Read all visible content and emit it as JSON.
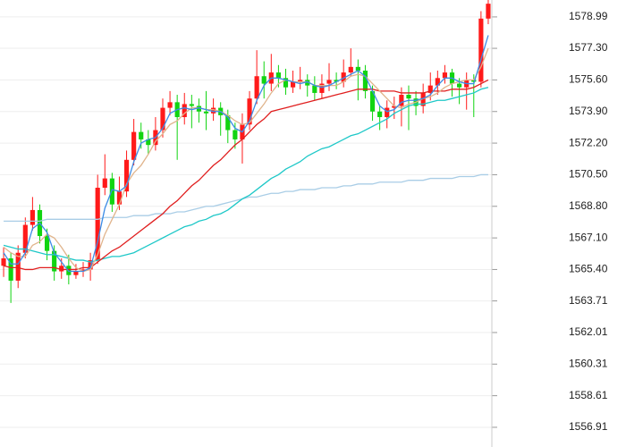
{
  "chart_data": {
    "type": "candlestick",
    "ylim": [
      1555.85,
      1579.9
    ],
    "yticks": [
      {
        "value": 1578.99,
        "label": "1578.99"
      },
      {
        "value": 1577.3,
        "label": "1577.30"
      },
      {
        "value": 1575.6,
        "label": "1575.60"
      },
      {
        "value": 1573.9,
        "label": "1573.90"
      },
      {
        "value": 1572.2,
        "label": "1572.20"
      },
      {
        "value": 1570.5,
        "label": "1570.50"
      },
      {
        "value": 1568.8,
        "label": "1568.80"
      },
      {
        "value": 1567.1,
        "label": "1567.10"
      },
      {
        "value": 1565.4,
        "label": "1565.40"
      },
      1563.71,
      1562.01,
      1560.31,
      1558.61,
      1556.91
    ],
    "grid": true,
    "up_color": "#ff1a1a",
    "down_color": "#11d411",
    "open": [
      1565.6,
      1566.0,
      1564.8,
      1566.3,
      1567.8,
      1568.6,
      1567.2,
      1566.4,
      1565.3,
      1565.6,
      1565.1,
      1565.3,
      1565.4,
      1565.9,
      1569.8,
      1570.3,
      1568.9,
      1569.6,
      1571.3,
      1572.8,
      1572.4,
      1572.1,
      1572.9,
      1574.1,
      1574.4,
      1573.6,
      1574.3,
      1574.2,
      1573.9,
      1573.8,
      1574.1,
      1573.7,
      1572.9,
      1572.4,
      1573.2,
      1574.6,
      1575.8,
      1575.4,
      1576.0,
      1575.7,
      1575.2,
      1575.5,
      1575.6,
      1575.3,
      1574.9,
      1575.4,
      1575.6,
      1575.5,
      1576.0,
      1576.3,
      1576.1,
      1575.0,
      1573.9,
      1573.6,
      1574.1,
      1574.2,
      1574.8,
      1574.6,
      1574.2,
      1574.9,
      1575.3,
      1575.7,
      1576.0,
      1575.4,
      1575.2,
      1575.6,
      1575.5,
      1578.9
    ],
    "high": [
      1566.6,
      1566.3,
      1566.7,
      1568.2,
      1569.3,
      1568.9,
      1567.6,
      1566.7,
      1566.0,
      1566.2,
      1565.7,
      1565.8,
      1566.3,
      1570.5,
      1571.6,
      1570.6,
      1570.4,
      1571.8,
      1573.5,
      1573.3,
      1572.9,
      1573.6,
      1574.6,
      1575.0,
      1574.8,
      1574.9,
      1574.8,
      1574.6,
      1575.0,
      1574.6,
      1574.4,
      1574.0,
      1573.3,
      1573.8,
      1575.0,
      1577.2,
      1576.6,
      1577.0,
      1576.4,
      1576.2,
      1576.1,
      1576.3,
      1575.9,
      1575.8,
      1575.9,
      1576.5,
      1576.0,
      1576.7,
      1577.3,
      1576.7,
      1576.4,
      1575.3,
      1574.2,
      1574.5,
      1574.7,
      1575.2,
      1575.3,
      1575.0,
      1575.4,
      1576.0,
      1576.1,
      1576.4,
      1576.2,
      1575.7,
      1576.0,
      1575.9,
      1579.3,
      1579.9
    ],
    "low": [
      1565.0,
      1563.6,
      1564.4,
      1566.0,
      1567.5,
      1566.8,
      1565.9,
      1564.8,
      1564.9,
      1564.6,
      1564.9,
      1565.0,
      1564.8,
      1565.7,
      1569.4,
      1568.5,
      1568.6,
      1569.3,
      1571.0,
      1571.9,
      1571.6,
      1571.8,
      1572.5,
      1573.7,
      1571.3,
      1573.2,
      1573.0,
      1573.3,
      1572.9,
      1573.4,
      1572.6,
      1572.2,
      1571.9,
      1571.1,
      1572.9,
      1574.3,
      1574.6,
      1575.0,
      1575.2,
      1574.8,
      1574.9,
      1575.1,
      1574.7,
      1574.5,
      1574.6,
      1575.0,
      1575.1,
      1575.2,
      1575.8,
      1574.5,
      1574.6,
      1573.4,
      1572.9,
      1573.0,
      1573.5,
      1573.1,
      1572.9,
      1573.7,
      1573.8,
      1574.5,
      1574.8,
      1575.4,
      1574.7,
      1574.3,
      1574.0,
      1573.6,
      1575.2,
      1578.6
    ],
    "close": [
      1566.0,
      1564.8,
      1566.3,
      1567.8,
      1568.6,
      1567.2,
      1566.4,
      1565.3,
      1565.6,
      1565.1,
      1565.3,
      1565.4,
      1565.9,
      1569.8,
      1570.3,
      1568.9,
      1569.6,
      1571.3,
      1572.8,
      1572.4,
      1572.1,
      1572.9,
      1574.1,
      1574.4,
      1573.6,
      1574.3,
      1574.2,
      1573.9,
      1573.8,
      1574.1,
      1573.7,
      1572.9,
      1572.4,
      1573.2,
      1574.6,
      1575.8,
      1575.4,
      1576.0,
      1575.7,
      1575.2,
      1575.5,
      1575.6,
      1575.3,
      1574.9,
      1575.4,
      1575.6,
      1575.5,
      1576.0,
      1576.3,
      1576.1,
      1575.0,
      1573.9,
      1573.6,
      1574.1,
      1574.2,
      1574.8,
      1574.6,
      1574.2,
      1574.9,
      1575.3,
      1575.7,
      1576.0,
      1575.4,
      1575.2,
      1575.6,
      1575.5,
      1578.9,
      1579.7
    ],
    "lines": [
      {
        "color": "#a9cde6",
        "values": [
          1568.0,
          1568.0,
          1568.0,
          1568.0,
          1568.0,
          1568.0,
          1568.1,
          1568.1,
          1568.1,
          1568.1,
          1568.1,
          1568.1,
          1568.1,
          1568.1,
          1568.2,
          1568.2,
          1568.2,
          1568.2,
          1568.3,
          1568.3,
          1568.3,
          1568.4,
          1568.4,
          1568.4,
          1568.5,
          1568.5,
          1568.6,
          1568.7,
          1568.8,
          1568.8,
          1568.9,
          1569.0,
          1569.1,
          1569.2,
          1569.3,
          1569.3,
          1569.4,
          1569.5,
          1569.5,
          1569.6,
          1569.6,
          1569.7,
          1569.7,
          1569.7,
          1569.8,
          1569.8,
          1569.8,
          1569.9,
          1569.9,
          1570.0,
          1570.0,
          1570.0,
          1570.1,
          1570.1,
          1570.1,
          1570.1,
          1570.2,
          1570.2,
          1570.2,
          1570.3,
          1570.3,
          1570.3,
          1570.3,
          1570.4,
          1570.4,
          1570.4,
          1570.5,
          1570.5
        ]
      },
      {
        "color": "#1ec8c8",
        "values": [
          1566.7,
          1566.6,
          1566.5,
          1566.5,
          1566.4,
          1566.3,
          1566.2,
          1566.2,
          1566.1,
          1566.0,
          1565.9,
          1565.9,
          1565.8,
          1565.9,
          1566.0,
          1566.1,
          1566.1,
          1566.2,
          1566.3,
          1566.5,
          1566.7,
          1566.9,
          1567.1,
          1567.3,
          1567.5,
          1567.7,
          1567.8,
          1568.0,
          1568.1,
          1568.3,
          1568.4,
          1568.6,
          1568.9,
          1569.2,
          1569.4,
          1569.7,
          1570.0,
          1570.3,
          1570.5,
          1570.8,
          1571.0,
          1571.2,
          1571.5,
          1571.7,
          1571.9,
          1572.0,
          1572.2,
          1572.4,
          1572.6,
          1572.7,
          1572.9,
          1573.1,
          1573.3,
          1573.5,
          1573.8,
          1574.0,
          1574.2,
          1574.3,
          1574.3,
          1574.4,
          1574.5,
          1574.5,
          1574.6,
          1574.7,
          1574.8,
          1574.9,
          1575.1,
          1575.2
        ]
      },
      {
        "color": "#e01e1e",
        "values": [
          1565.6,
          1565.5,
          1565.5,
          1565.4,
          1565.4,
          1565.5,
          1565.5,
          1565.5,
          1565.4,
          1565.4,
          1565.4,
          1565.5,
          1565.5,
          1565.8,
          1566.1,
          1566.4,
          1566.6,
          1566.9,
          1567.2,
          1567.5,
          1567.8,
          1568.1,
          1568.4,
          1568.8,
          1569.1,
          1569.5,
          1569.9,
          1570.2,
          1570.6,
          1571.0,
          1571.3,
          1571.7,
          1572.1,
          1572.4,
          1572.8,
          1573.2,
          1573.5,
          1573.9,
          1574.0,
          1574.1,
          1574.2,
          1574.3,
          1574.4,
          1574.5,
          1574.6,
          1574.7,
          1574.8,
          1574.9,
          1575.0,
          1575.1,
          1575.1,
          1575.1,
          1575.0,
          1575.0,
          1575.0,
          1574.9,
          1574.9,
          1574.9,
          1574.9,
          1575.0,
          1575.0,
          1575.0,
          1575.1,
          1575.1,
          1575.1,
          1575.2,
          1575.4,
          1575.6
        ]
      },
      {
        "color": "#e0b48c",
        "values": [
          1566.6,
          1566.3,
          1566.1,
          1566.1,
          1566.7,
          1566.9,
          1567.3,
          1567.1,
          1566.6,
          1566.0,
          1565.5,
          1565.3,
          1565.4,
          1566.2,
          1567.3,
          1568.1,
          1568.9,
          1570.0,
          1570.6,
          1571.0,
          1571.6,
          1572.3,
          1572.7,
          1573.2,
          1573.4,
          1573.8,
          1574.1,
          1574.1,
          1574.0,
          1574.0,
          1573.9,
          1573.7,
          1573.4,
          1573.2,
          1573.3,
          1573.8,
          1574.3,
          1574.9,
          1575.4,
          1575.6,
          1575.5,
          1575.5,
          1575.5,
          1575.3,
          1575.3,
          1575.3,
          1575.3,
          1575.5,
          1575.8,
          1575.9,
          1575.8,
          1575.4,
          1575.0,
          1574.6,
          1574.2,
          1574.1,
          1574.3,
          1574.4,
          1574.6,
          1574.7,
          1574.9,
          1575.2,
          1575.4,
          1575.5,
          1575.6,
          1575.6,
          1576.3,
          1577.3
        ]
      },
      {
        "color": "#3c8ce6",
        "values": [
          1566.3,
          1565.7,
          1565.7,
          1566.3,
          1567.6,
          1567.9,
          1567.4,
          1566.3,
          1565.8,
          1565.3,
          1565.3,
          1565.3,
          1565.5,
          1566.9,
          1568.7,
          1569.7,
          1569.6,
          1569.9,
          1571.2,
          1572.2,
          1572.4,
          1572.5,
          1573.0,
          1573.8,
          1574.0,
          1574.1,
          1574.0,
          1574.1,
          1574.0,
          1573.9,
          1573.9,
          1573.6,
          1573.0,
          1572.8,
          1573.4,
          1574.5,
          1575.3,
          1575.7,
          1575.7,
          1575.6,
          1575.5,
          1575.4,
          1575.5,
          1575.3,
          1575.2,
          1575.3,
          1575.5,
          1575.7,
          1575.9,
          1576.1,
          1575.8,
          1575.0,
          1574.2,
          1573.9,
          1574.0,
          1574.4,
          1574.5,
          1574.5,
          1574.6,
          1574.8,
          1575.3,
          1575.7,
          1575.7,
          1575.5,
          1575.4,
          1575.4,
          1576.7,
          1578.0
        ]
      }
    ]
  }
}
